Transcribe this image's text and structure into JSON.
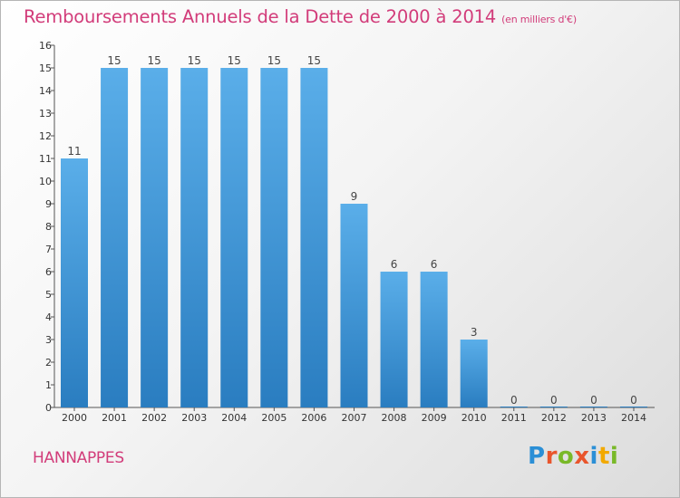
{
  "title": "Remboursements Annuels de la Dette de 2000 à 2014",
  "unit_note": "(en milliers d'€)",
  "commune": "HANNAPPES",
  "logo": {
    "text": "Proxiti",
    "letters": [
      "P",
      "r",
      "o",
      "x",
      "i",
      "t",
      "i"
    ],
    "colors": [
      "#2b8fd6",
      "#e9552c",
      "#79b928",
      "#e9552c",
      "#2b8fd6",
      "#f2a900",
      "#79b928"
    ]
  },
  "colors": {
    "bar_top": "#5aaee9",
    "bar_bottom": "#2a7dc0",
    "title": "#d23c7a"
  },
  "chart_data": {
    "type": "bar",
    "title": "Remboursements Annuels de la Dette de 2000 à 2014",
    "categories": [
      "2000",
      "2001",
      "2002",
      "2003",
      "2004",
      "2005",
      "2006",
      "2007",
      "2008",
      "2009",
      "2010",
      "2011",
      "2012",
      "2013",
      "2014"
    ],
    "values": [
      11,
      15,
      15,
      15,
      15,
      15,
      15,
      9,
      6,
      6,
      3,
      0,
      0,
      0,
      0
    ],
    "ylim": [
      0,
      16
    ],
    "yticks": [
      0,
      1,
      2,
      3,
      4,
      5,
      6,
      7,
      8,
      9,
      10,
      11,
      12,
      13,
      14,
      15,
      16
    ],
    "grid": false,
    "data_labels": true
  }
}
